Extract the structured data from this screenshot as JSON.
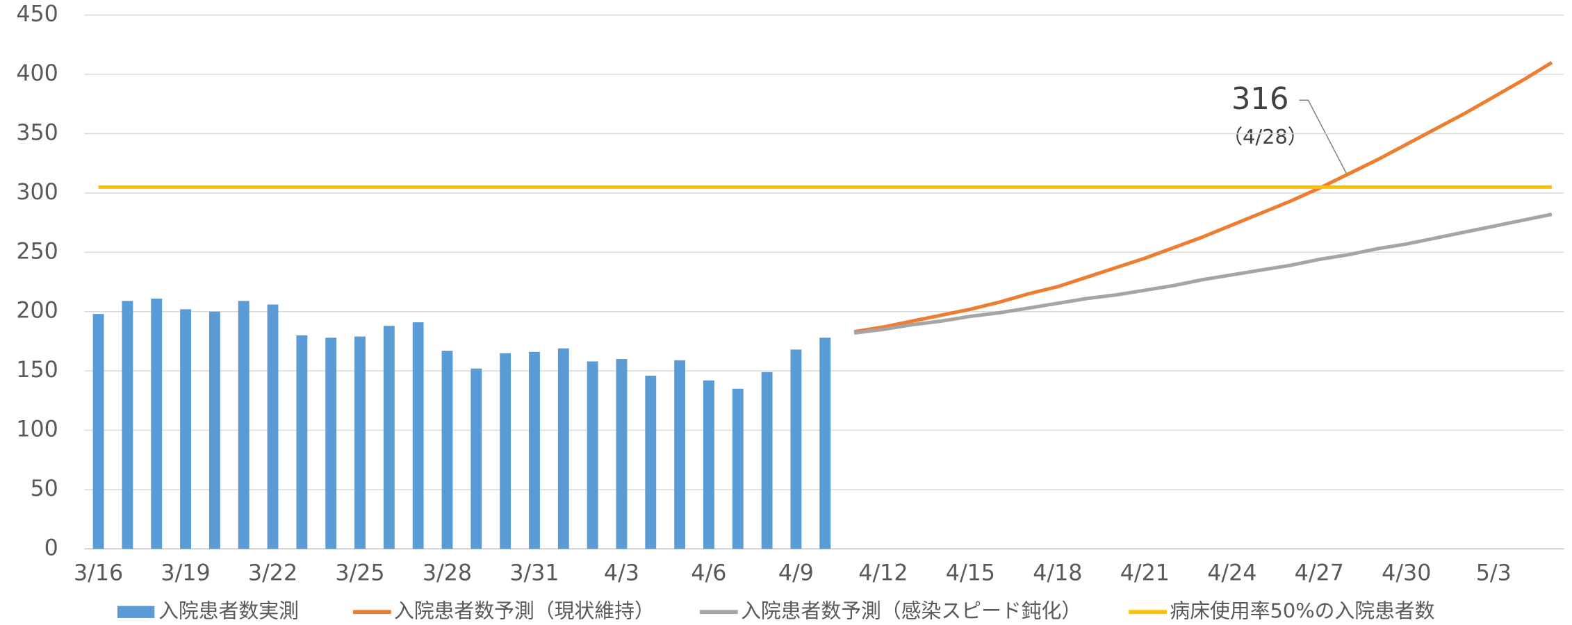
{
  "chart_data": {
    "type": "bar-line",
    "categories": [
      "3/16",
      null,
      null,
      "3/19",
      null,
      null,
      "3/22",
      null,
      null,
      "3/25",
      null,
      null,
      "3/28",
      null,
      null,
      "3/31",
      null,
      null,
      "4/3",
      null,
      null,
      "4/6",
      null,
      null,
      "4/9",
      null,
      null,
      "4/12",
      null,
      null,
      "4/15",
      null,
      null,
      "4/18",
      null,
      null,
      "4/21",
      null,
      null,
      "4/24",
      null,
      null,
      "4/27",
      null,
      null,
      "4/30",
      null,
      null,
      "5/3",
      null,
      null
    ],
    "series": [
      {
        "name": "入院患者数実測",
        "type": "bar",
        "color": "#5b9bd5",
        "values": [
          198,
          209,
          211,
          202,
          200,
          209,
          206,
          180,
          178,
          179,
          188,
          191,
          167,
          152,
          165,
          166,
          169,
          158,
          160,
          146,
          159,
          142,
          135,
          149,
          168,
          178,
          null,
          null,
          null,
          null,
          null,
          null,
          null,
          null,
          null,
          null,
          null,
          null,
          null,
          null,
          null,
          null,
          null,
          null,
          null,
          null,
          null,
          null,
          null,
          null,
          null
        ]
      },
      {
        "name": "入院患者数予測（現状維持）",
        "type": "line",
        "color": "#ed7d31",
        "values": [
          null,
          null,
          null,
          null,
          null,
          null,
          null,
          null,
          null,
          null,
          null,
          null,
          null,
          null,
          null,
          null,
          null,
          null,
          null,
          null,
          null,
          null,
          null,
          null,
          null,
          null,
          183,
          187,
          192,
          197,
          202,
          208,
          215,
          221,
          229,
          237,
          245,
          254,
          263,
          273,
          283,
          293,
          304,
          316,
          328,
          341,
          354,
          367,
          381,
          395,
          410
        ]
      },
      {
        "name": "入院患者数予測（感染スピード鈍化）",
        "type": "line",
        "color": "#a5a5a5",
        "values": [
          null,
          null,
          null,
          null,
          null,
          null,
          null,
          null,
          null,
          null,
          null,
          null,
          null,
          null,
          null,
          null,
          null,
          null,
          null,
          null,
          null,
          null,
          null,
          null,
          null,
          null,
          182,
          185,
          189,
          192,
          196,
          199,
          203,
          207,
          211,
          214,
          218,
          222,
          227,
          231,
          235,
          239,
          244,
          248,
          253,
          257,
          262,
          267,
          272,
          277,
          282
        ]
      },
      {
        "name": "病床使用率50%の入院患者数",
        "type": "line",
        "color": "#ffc000",
        "values": [
          305,
          305,
          305,
          305,
          305,
          305,
          305,
          305,
          305,
          305,
          305,
          305,
          305,
          305,
          305,
          305,
          305,
          305,
          305,
          305,
          305,
          305,
          305,
          305,
          305,
          305,
          305,
          305,
          305,
          305,
          305,
          305,
          305,
          305,
          305,
          305,
          305,
          305,
          305,
          305,
          305,
          305,
          305,
          305,
          305,
          305,
          305,
          305,
          305,
          305,
          305
        ]
      }
    ],
    "annotations": [
      {
        "label": "316",
        "sublabel": "（4/28）"
      }
    ],
    "ylim": [
      0,
      450
    ],
    "yticks": [
      0,
      50,
      100,
      150,
      200,
      250,
      300,
      350,
      400,
      450
    ],
    "grid": true,
    "legend": "bottom"
  }
}
